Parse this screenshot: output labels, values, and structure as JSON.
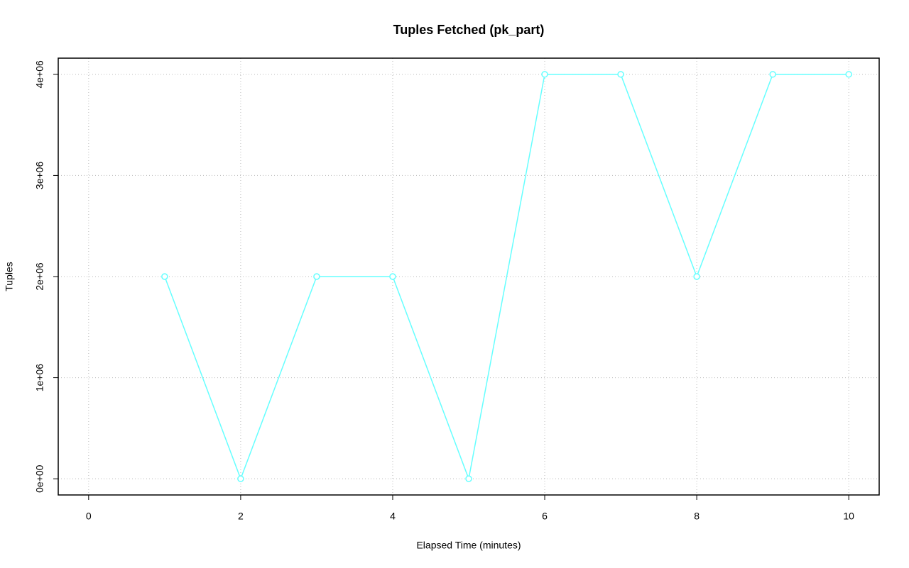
{
  "chart_data": {
    "type": "line",
    "title": "Tuples Fetched (pk_part)",
    "x_label": "Elapsed Time (minutes)",
    "y_label": "Tuples",
    "x": [
      1,
      2,
      3,
      4,
      5,
      6,
      7,
      8,
      9,
      10
    ],
    "series": [
      {
        "color": "#66ffff",
        "values": [
          2000000,
          0,
          2000000,
          2000000,
          0,
          4000000,
          4000000,
          2000000,
          4000000,
          4000000
        ]
      }
    ],
    "xlim": [
      -0.4,
      10.4
    ],
    "ylim": [
      -160000,
      4160000
    ],
    "xticks": [
      0,
      2,
      4,
      6,
      8,
      10
    ],
    "yticks": [
      {
        "value": 0,
        "label": "0e+00"
      },
      {
        "value": 1000000,
        "label": "1e+06"
      },
      {
        "value": 2000000,
        "label": "2e+06"
      },
      {
        "value": 3000000,
        "label": "3e+06"
      },
      {
        "value": 4000000,
        "label": "4e+06"
      }
    ],
    "grid": true
  }
}
